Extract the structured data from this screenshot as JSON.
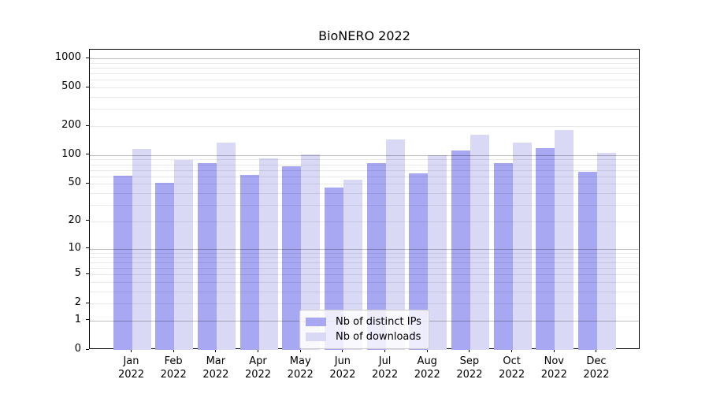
{
  "chart_data": {
    "type": "bar",
    "title": "BioNERO 2022",
    "categories": [
      "Jan",
      "Feb",
      "Mar",
      "Apr",
      "May",
      "Jun",
      "Jul",
      "Aug",
      "Sep",
      "Oct",
      "Nov",
      "Dec"
    ],
    "year": "2022",
    "series": [
      {
        "name": "Nb of distinct IPs",
        "color": "#a7a7f2",
        "values": [
          61,
          51,
          83,
          62,
          76,
          46,
          83,
          65,
          112,
          83,
          119,
          67
        ]
      },
      {
        "name": "Nb of downloads",
        "color": "#d9d9f6",
        "values": [
          117,
          89,
          135,
          92,
          102,
          55,
          146,
          99,
          163,
          135,
          183,
          106
        ]
      }
    ],
    "yscale": "log1p",
    "ylim": [
      0,
      1230
    ],
    "yticks": [
      1000,
      500,
      200,
      100,
      50,
      20,
      10,
      5,
      2,
      1,
      0
    ],
    "grid": {
      "major_ticks": [
        1,
        10,
        100,
        1000
      ],
      "minor_ticks": [
        2,
        3,
        4,
        5,
        6,
        7,
        8,
        9,
        20,
        30,
        40,
        50,
        60,
        70,
        80,
        90,
        200,
        300,
        400,
        500,
        600,
        700,
        800,
        900
      ],
      "major_color": "#bababa",
      "minor_color": "#ededed"
    },
    "legend": {
      "position": "lower center"
    },
    "xlabel": "",
    "ylabel": ""
  }
}
